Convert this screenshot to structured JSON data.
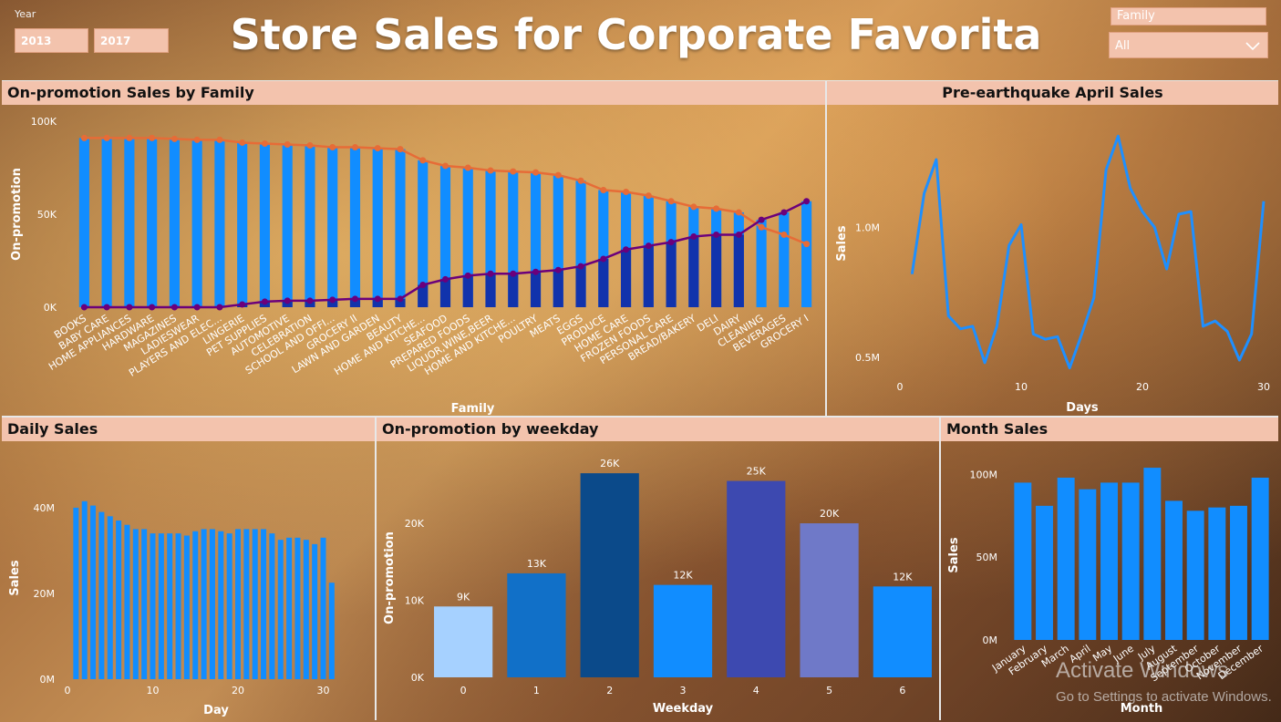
{
  "header": {
    "title": "Store Sales for Corporate Favorita",
    "year_label": "Year",
    "year_from": "2013",
    "year_to": "2017",
    "family_label": "Family",
    "family_value": "All"
  },
  "watermark": {
    "line1": "Activate Windows",
    "line2": "Go to Settings to activate Windows."
  },
  "colors": {
    "panel_header": "#f3c3ad",
    "bar_blue": "#118dff",
    "bar_dark": "#12239e",
    "line_orange": "#e66c37",
    "line_purple": "#6b007b"
  },
  "chart_data": [
    {
      "id": "promo_by_family",
      "type": "bar",
      "title": "On-promotion Sales by Family",
      "xlabel": "Family",
      "ylabel": "On-promotion",
      "ylim": [
        0,
        100000
      ],
      "yticks": [
        "0K",
        "50K",
        "100K"
      ],
      "categories": [
        "BOOKS",
        "BABY CARE",
        "HOME APPLIANCES",
        "HARDWARE",
        "MAGAZINES",
        "LADIESWEAR",
        "PLAYERS AND ELEC...",
        "LINGERIE",
        "PET SUPPLIES",
        "AUTOMOTIVE",
        "CELEBRATION",
        "SCHOOL AND OFFI...",
        "GROCERY II",
        "LAWN AND GARDEN",
        "BEAUTY",
        "HOME AND KITCHE...",
        "SEAFOOD",
        "PREPARED FOODS",
        "LIQUOR,WINE,BEER",
        "HOME AND KITCHE...",
        "POULTRY",
        "MEATS",
        "EGGS",
        "PRODUCE",
        "HOME CARE",
        "FROZEN FOODS",
        "PERSONAL CARE",
        "BREAD/BAKERY",
        "DELI",
        "DAIRY",
        "CLEANING",
        "BEVERAGES",
        "GROCERY I"
      ],
      "series": [
        {
          "values": [
            0,
            0,
            0,
            0,
            0,
            0,
            0,
            1500,
            3000,
            3500,
            3500,
            4000,
            4500,
            4500,
            4500,
            12000,
            15000,
            17000,
            18000,
            18000,
            19000,
            20000,
            22000,
            26000,
            31000,
            33000,
            35000,
            38000,
            39000,
            39000,
            47000,
            51000,
            57000
          ]
        },
        {
          "values": [
            91000,
            91000,
            91000,
            91000,
            90500,
            90000,
            90000,
            88500,
            88000,
            87500,
            87000,
            86000,
            86000,
            85500,
            85000,
            79000,
            76000,
            75000,
            73500,
            73000,
            72500,
            71000,
            68000,
            63000,
            62000,
            60000,
            57000,
            54000,
            53000,
            51000,
            43000,
            39000,
            34000
          ]
        }
      ]
    },
    {
      "id": "pre_earthquake_april",
      "type": "line",
      "title": "Pre-earthquake April Sales",
      "xlabel": "Days",
      "ylabel": "Sales",
      "xlim": [
        0,
        30
      ],
      "xticks": [
        "0",
        "10",
        "20",
        "30"
      ],
      "yticks": [
        "0.5M",
        "1.0M"
      ],
      "ylim": [
        0.35,
        1.4
      ],
      "x": [
        1,
        2,
        3,
        4,
        5,
        6,
        7,
        8,
        9,
        10,
        11,
        12,
        13,
        14,
        15,
        16,
        17,
        18,
        19,
        20,
        21,
        22,
        23,
        24,
        25,
        26,
        27,
        28,
        29,
        30
      ],
      "values": [
        0.82,
        1.13,
        1.26,
        0.66,
        0.61,
        0.62,
        0.48,
        0.62,
        0.93,
        1.01,
        0.59,
        0.57,
        0.58,
        0.46,
        0.59,
        0.73,
        1.22,
        1.35,
        1.15,
        1.06,
        1.0,
        0.84,
        1.05,
        1.06,
        0.62,
        0.64,
        0.6,
        0.49,
        0.59,
        1.1
      ]
    },
    {
      "id": "daily_sales",
      "type": "bar",
      "title": "Daily Sales",
      "xlabel": "Day",
      "ylabel": "Sales",
      "ylim": [
        0,
        47
      ],
      "yticks": [
        "0M",
        "20M",
        "40M"
      ],
      "xticks": [
        "0",
        "10",
        "20",
        "30"
      ],
      "categories": [
        1,
        2,
        3,
        4,
        5,
        6,
        7,
        8,
        9,
        10,
        11,
        12,
        13,
        14,
        15,
        16,
        17,
        18,
        19,
        20,
        21,
        22,
        23,
        24,
        25,
        26,
        27,
        28,
        29,
        30,
        31
      ],
      "values": [
        40,
        41.5,
        40.5,
        39,
        38,
        37,
        36,
        35,
        35,
        34,
        34,
        34,
        34,
        33.5,
        34.5,
        35,
        35,
        34.5,
        34,
        35,
        35,
        35,
        35,
        34,
        32.5,
        33,
        33,
        32.5,
        31.5,
        33,
        22.5
      ]
    },
    {
      "id": "promo_by_weekday",
      "type": "bar",
      "title": "On-promotion by weekday",
      "xlabel": "Weekday",
      "ylabel": "On-promotion",
      "ylim": [
        0,
        29000
      ],
      "yticks": [
        "0K",
        "10K",
        "20K"
      ],
      "categories": [
        "0",
        "1",
        "2",
        "3",
        "4",
        "5",
        "6"
      ],
      "values": [
        9200,
        13500,
        26500,
        12000,
        25500,
        20000,
        11800
      ],
      "data_labels": [
        "9K",
        "13K",
        "26K",
        "12K",
        "25K",
        "20K",
        "12K"
      ],
      "bar_colors": [
        "#a6d1ff",
        "#1170c8",
        "#0b4a8a",
        "#118dff",
        "#3d49b0",
        "#6f79c8",
        "#118dff"
      ]
    },
    {
      "id": "month_sales",
      "type": "bar",
      "title": "Month Sales",
      "xlabel": "Month",
      "ylabel": "Sales",
      "ylim": [
        0,
        120
      ],
      "yticks": [
        "0M",
        "50M",
        "100M"
      ],
      "categories": [
        "January",
        "February",
        "March",
        "April",
        "May",
        "June",
        "July",
        "August",
        "September",
        "October",
        "November",
        "December"
      ],
      "values": [
        95,
        81,
        98,
        91,
        95,
        95,
        104,
        84,
        78,
        80,
        81,
        98
      ]
    }
  ]
}
